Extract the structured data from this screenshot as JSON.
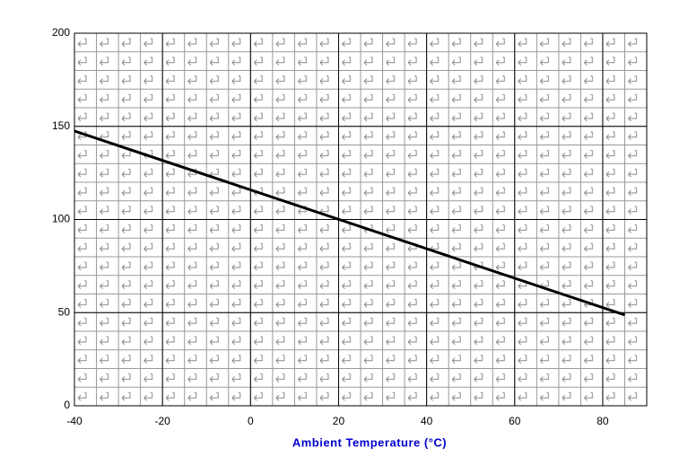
{
  "chart_data": {
    "type": "line",
    "xlabel": "Ambient Temperature (°C)",
    "xlabel_color": "#0000cc",
    "x": [
      -40,
      85
    ],
    "series": [
      {
        "color": "#000000",
        "values": [
          147.5,
          48.75
        ]
      }
    ],
    "xlim": [
      -40,
      90
    ],
    "xticks": [
      -40,
      -20,
      0,
      20,
      40,
      60,
      80
    ],
    "ylim": [
      0,
      200
    ],
    "yticks": [
      0,
      50,
      100,
      150,
      200
    ],
    "grid": true
  }
}
